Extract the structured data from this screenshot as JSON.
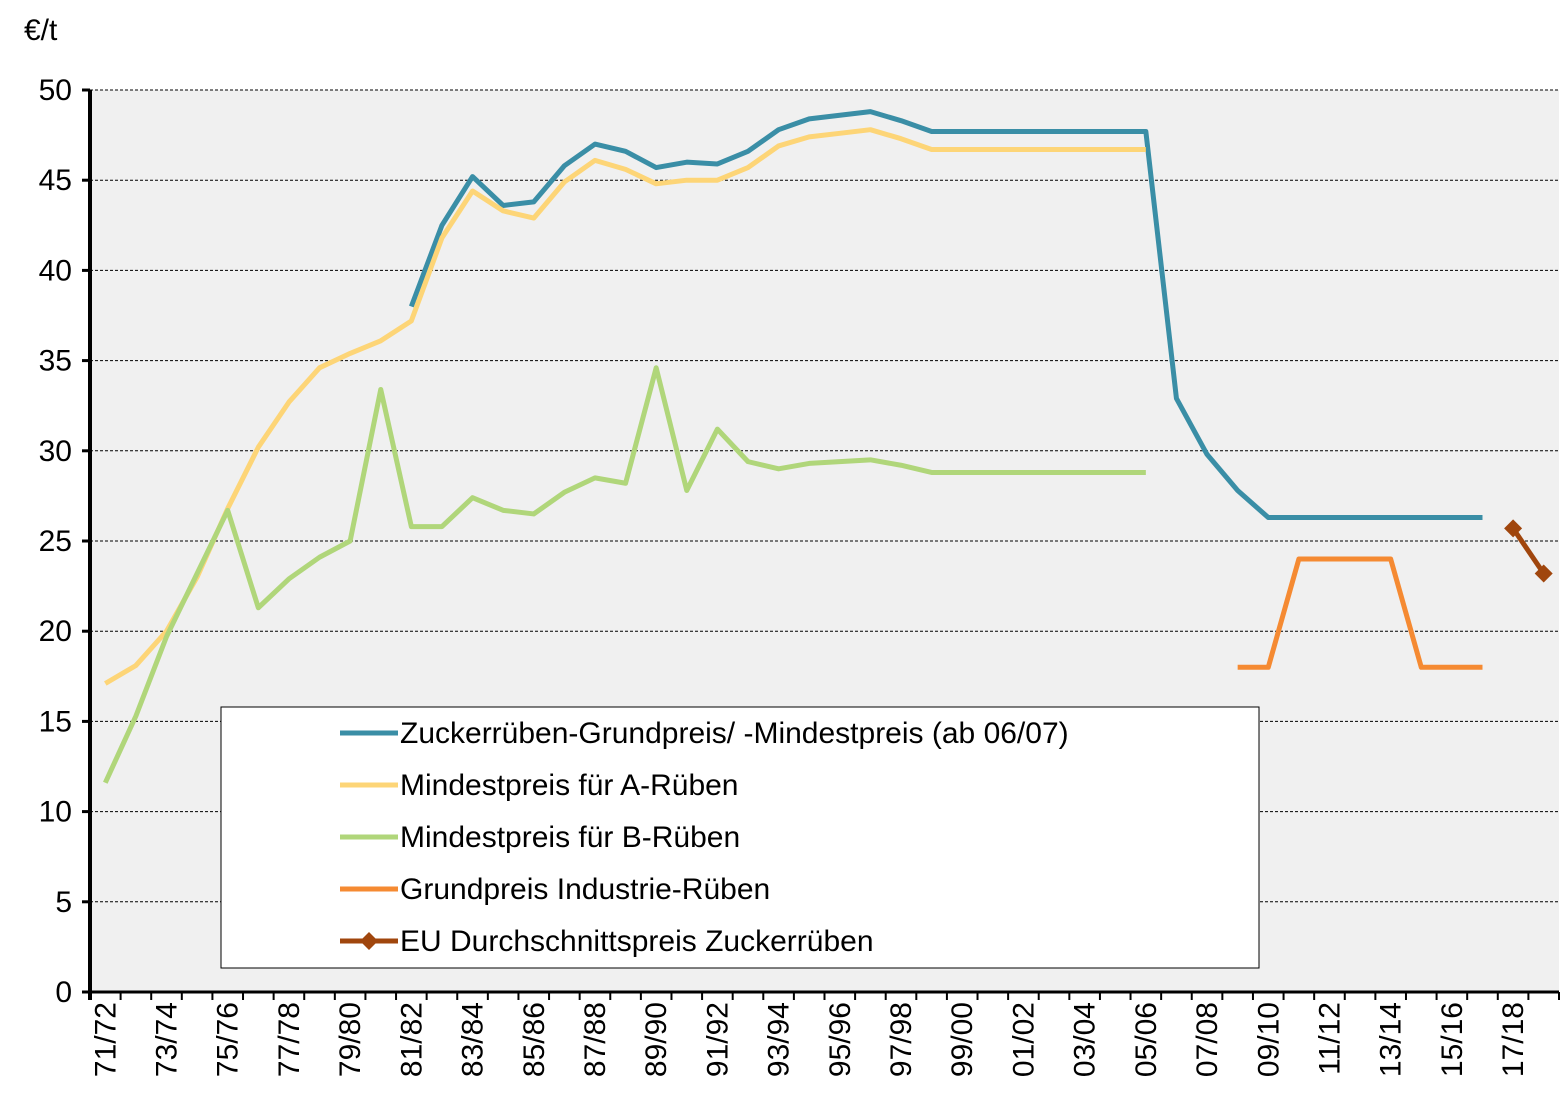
{
  "chart_data": {
    "type": "line",
    "y_label": "€/t",
    "categories": [
      "71/72",
      null,
      "73/74",
      null,
      "75/76",
      null,
      "77/78",
      null,
      "79/80",
      null,
      "81/82",
      null,
      "83/84",
      null,
      "85/86",
      null,
      "87/88",
      null,
      "89/90",
      null,
      "91/92",
      null,
      "93/94",
      null,
      "95/96",
      null,
      "97/98",
      null,
      "99/00",
      null,
      "01/02",
      null,
      "03/04",
      null,
      "05/06",
      null,
      "07/08",
      null,
      "09/10",
      null,
      "11/12",
      null,
      "13/14",
      null,
      "15/16",
      null,
      "17/18",
      null
    ],
    "series": [
      {
        "name": "Zuckerrüben-Grundpreis/ -Mindestpreis (ab 06/07)",
        "color": "#3a8ea6",
        "marker": "none",
        "values": [
          null,
          null,
          null,
          null,
          null,
          null,
          null,
          null,
          null,
          null,
          38.0,
          42.5,
          45.2,
          43.6,
          43.8,
          45.8,
          47.0,
          46.6,
          45.7,
          46.0,
          45.9,
          46.6,
          47.8,
          48.4,
          48.6,
          48.8,
          48.3,
          47.7,
          47.7,
          47.7,
          47.7,
          47.7,
          47.7,
          47.7,
          47.7,
          32.9,
          29.8,
          27.8,
          26.3,
          26.3,
          26.3,
          26.3,
          26.3,
          26.3,
          26.3,
          26.3,
          null,
          null
        ]
      },
      {
        "name": "Mindestpreis für A-Rüben",
        "color": "#fdd577",
        "marker": "none",
        "values": [
          17.1,
          18.1,
          20.0,
          23.0,
          26.8,
          30.2,
          32.7,
          34.6,
          35.4,
          36.1,
          37.2,
          41.8,
          44.4,
          43.3,
          42.9,
          44.9,
          46.1,
          45.6,
          44.8,
          45.0,
          45.0,
          45.7,
          46.9,
          47.4,
          47.6,
          47.8,
          47.3,
          46.7,
          46.7,
          46.7,
          46.7,
          46.7,
          46.7,
          46.7,
          46.7,
          null,
          null,
          null,
          null,
          null,
          null,
          null,
          null,
          null,
          null,
          null,
          null,
          null
        ]
      },
      {
        "name": "Mindestpreis für B-Rüben",
        "color": "#b0d67a",
        "marker": "none",
        "values": [
          11.6,
          15.3,
          19.7,
          23.2,
          26.7,
          21.3,
          22.9,
          24.1,
          25.0,
          33.4,
          25.8,
          25.8,
          27.4,
          26.7,
          26.5,
          27.7,
          28.5,
          28.2,
          34.6,
          27.8,
          31.2,
          29.4,
          29.0,
          29.3,
          29.4,
          29.5,
          29.2,
          28.8,
          28.8,
          28.8,
          28.8,
          28.8,
          28.8,
          28.8,
          28.8,
          null,
          null,
          null,
          null,
          null,
          null,
          null,
          null,
          null,
          null,
          null,
          null,
          null
        ]
      },
      {
        "name": "Grundpreis Industrie-Rüben",
        "color": "#f58a32",
        "marker": "none",
        "values": [
          null,
          null,
          null,
          null,
          null,
          null,
          null,
          null,
          null,
          null,
          null,
          null,
          null,
          null,
          null,
          null,
          null,
          null,
          null,
          null,
          null,
          null,
          null,
          null,
          null,
          null,
          null,
          null,
          null,
          null,
          null,
          null,
          null,
          null,
          null,
          null,
          null,
          18.0,
          18.0,
          24.0,
          24.0,
          24.0,
          24.0,
          18.0,
          18.0,
          18.0,
          null,
          null
        ]
      },
      {
        "name": "EU Durchschnittspreis Zuckerrüben",
        "color": "#a0460d",
        "marker": "diamond",
        "values": [
          null,
          null,
          null,
          null,
          null,
          null,
          null,
          null,
          null,
          null,
          null,
          null,
          null,
          null,
          null,
          null,
          null,
          null,
          null,
          null,
          null,
          null,
          null,
          null,
          null,
          null,
          null,
          null,
          null,
          null,
          null,
          null,
          null,
          null,
          null,
          null,
          null,
          null,
          null,
          null,
          null,
          null,
          null,
          null,
          null,
          null,
          25.7,
          23.2
        ]
      }
    ],
    "ylim": [
      0,
      50
    ],
    "yticks": [
      0,
      5,
      10,
      15,
      20,
      25,
      30,
      35,
      40,
      45,
      50
    ],
    "grid": true
  }
}
